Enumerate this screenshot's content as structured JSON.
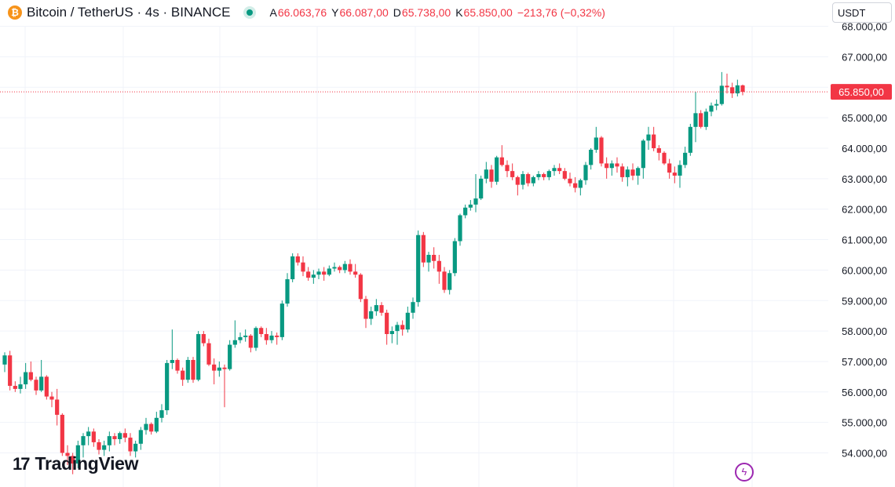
{
  "header": {
    "symbol": "Bitcoin / TetherUS · 4s · BINANCE",
    "open_label": "A",
    "open": "66.063,76",
    "high_label": "Y",
    "high": "66.087,00",
    "low_label": "D",
    "low": "65.738,00",
    "close_label": "K",
    "close": "65.850,00",
    "change": "−213,76 (−0,32%)"
  },
  "currency": "USDT",
  "logo": {
    "mark": "17",
    "text": "TradingView"
  },
  "icons": {
    "coin": "bitcoin-icon",
    "flash": "lightning-icon"
  },
  "colors": {
    "up": "#089981",
    "down": "#f23645",
    "grid": "#f0f3fa",
    "axis_text": "#131722"
  },
  "chart_data": {
    "type": "candlestick",
    "ylim": [
      53500,
      68300
    ],
    "y_ticks": [
      "68.000,00",
      "67.000,00",
      "66.000,00",
      "65.000,00",
      "64.000,00",
      "63.000,00",
      "62.000,00",
      "61.000,00",
      "60.000,00",
      "59.000,00",
      "58.000,00",
      "57.000,00",
      "56.000,00",
      "55.000,00",
      "54.000,00"
    ],
    "last_price": 65850,
    "last_price_label": "65.850,00",
    "candles": [
      [
        56900,
        57300,
        56650,
        57200
      ],
      [
        57200,
        57350,
        56050,
        56200
      ],
      [
        56200,
        56350,
        56000,
        56100
      ],
      [
        56100,
        56500,
        55950,
        56250
      ],
      [
        56250,
        56950,
        56100,
        56650
      ],
      [
        56650,
        57000,
        56350,
        56400
      ],
      [
        56400,
        56500,
        55900,
        56050
      ],
      [
        56050,
        57050,
        56000,
        56500
      ],
      [
        56500,
        56550,
        55750,
        55850
      ],
      [
        55850,
        56000,
        55500,
        55750
      ],
      [
        55750,
        56100,
        54900,
        55250
      ],
      [
        55250,
        55300,
        53900,
        54000
      ],
      [
        54000,
        54250,
        53600,
        53900
      ],
      [
        53900,
        54000,
        53300,
        53650
      ],
      [
        53650,
        54400,
        53500,
        54250
      ],
      [
        54250,
        54650,
        53850,
        54550
      ],
      [
        54550,
        54850,
        54250,
        54700
      ],
      [
        54700,
        54800,
        54200,
        54350
      ],
      [
        54350,
        54450,
        53950,
        54100
      ],
      [
        54100,
        54400,
        53900,
        54250
      ],
      [
        54250,
        54700,
        54050,
        54550
      ],
      [
        54550,
        54650,
        54250,
        54450
      ],
      [
        54450,
        54700,
        54300,
        54650
      ],
      [
        54650,
        54800,
        54350,
        54500
      ],
      [
        54500,
        54650,
        53900,
        54050
      ],
      [
        54050,
        54400,
        53850,
        54300
      ],
      [
        54300,
        54850,
        54100,
        54750
      ],
      [
        54750,
        55150,
        54600,
        54950
      ],
      [
        54950,
        55000,
        54600,
        54700
      ],
      [
        54700,
        55350,
        54650,
        55150
      ],
      [
        55150,
        55600,
        55000,
        55400
      ],
      [
        55400,
        57050,
        55250,
        56950
      ],
      [
        56950,
        58050,
        56750,
        57050
      ],
      [
        57050,
        57100,
        56600,
        56700
      ],
      [
        56700,
        56800,
        56200,
        56400
      ],
      [
        56400,
        57150,
        56300,
        57050
      ],
      [
        57050,
        57150,
        56300,
        56400
      ],
      [
        56400,
        58000,
        56350,
        57900
      ],
      [
        57900,
        58000,
        57500,
        57600
      ],
      [
        57600,
        57750,
        56850,
        56900
      ],
      [
        56900,
        57100,
        56250,
        56700
      ],
      [
        56700,
        57000,
        56500,
        56800
      ],
      [
        56800,
        56900,
        55500,
        56750
      ],
      [
        56750,
        57700,
        56700,
        57550
      ],
      [
        57550,
        58350,
        57450,
        57700
      ],
      [
        57700,
        57950,
        57600,
        57800
      ],
      [
        57800,
        58050,
        57650,
        57850
      ],
      [
        57850,
        57900,
        57300,
        57450
      ],
      [
        57450,
        58150,
        57350,
        58100
      ],
      [
        58100,
        58150,
        57800,
        57900
      ],
      [
        57900,
        58100,
        57550,
        57700
      ],
      [
        57700,
        58000,
        57600,
        57850
      ],
      [
        57850,
        57950,
        57550,
        57800
      ],
      [
        57800,
        59000,
        57700,
        58900
      ],
      [
        58900,
        59900,
        58800,
        59700
      ],
      [
        59700,
        60550,
        59600,
        60450
      ],
      [
        60450,
        60550,
        60150,
        60250
      ],
      [
        60250,
        60450,
        59800,
        59950
      ],
      [
        59950,
        60100,
        59650,
        59750
      ],
      [
        59750,
        60000,
        59550,
        59850
      ],
      [
        59850,
        60050,
        59700,
        59950
      ],
      [
        59950,
        60100,
        59650,
        59850
      ],
      [
        59850,
        60150,
        59800,
        60050
      ],
      [
        60050,
        60250,
        59950,
        60100
      ],
      [
        60100,
        60150,
        59900,
        60000
      ],
      [
        60000,
        60300,
        59900,
        60200
      ],
      [
        60200,
        60350,
        59850,
        59950
      ],
      [
        59950,
        60200,
        59750,
        59850
      ],
      [
        59850,
        59900,
        58950,
        59050
      ],
      [
        59050,
        59150,
        58100,
        58400
      ],
      [
        58400,
        58800,
        58200,
        58650
      ],
      [
        58650,
        59050,
        58500,
        58850
      ],
      [
        58850,
        58950,
        58500,
        58600
      ],
      [
        58600,
        58700,
        57550,
        57900
      ],
      [
        57900,
        58150,
        57600,
        58000
      ],
      [
        58000,
        58300,
        57550,
        58200
      ],
      [
        58200,
        58350,
        57850,
        58050
      ],
      [
        58050,
        58800,
        57950,
        58600
      ],
      [
        58600,
        59100,
        58400,
        58950
      ],
      [
        58950,
        61300,
        58800,
        61150
      ],
      [
        61150,
        61250,
        60100,
        60250
      ],
      [
        60250,
        60600,
        59950,
        60500
      ],
      [
        60500,
        60750,
        60050,
        60300
      ],
      [
        60300,
        60500,
        59550,
        59950
      ],
      [
        59950,
        60100,
        59250,
        59350
      ],
      [
        59350,
        60000,
        59200,
        59900
      ],
      [
        59900,
        61050,
        59800,
        60950
      ],
      [
        60950,
        61850,
        60800,
        61800
      ],
      [
        61800,
        62150,
        61700,
        62050
      ],
      [
        62050,
        62300,
        61950,
        62150
      ],
      [
        62150,
        63150,
        61900,
        62350
      ],
      [
        62350,
        63100,
        62300,
        63000
      ],
      [
        63000,
        63550,
        62850,
        63300
      ],
      [
        63300,
        63450,
        62700,
        62900
      ],
      [
        62900,
        63750,
        62800,
        63700
      ],
      [
        63700,
        64100,
        63400,
        63450
      ],
      [
        63450,
        63600,
        63050,
        63250
      ],
      [
        63250,
        63500,
        62950,
        63050
      ],
      [
        63050,
        63100,
        62450,
        62800
      ],
      [
        62800,
        63250,
        62650,
        63150
      ],
      [
        63150,
        63200,
        62750,
        62850
      ],
      [
        62850,
        63100,
        62750,
        63050
      ],
      [
        63050,
        63250,
        62950,
        63150
      ],
      [
        63150,
        63200,
        62950,
        63050
      ],
      [
        63050,
        63300,
        62950,
        63250
      ],
      [
        63250,
        63450,
        63100,
        63350
      ],
      [
        63350,
        63500,
        63150,
        63250
      ],
      [
        63250,
        63350,
        62950,
        63000
      ],
      [
        63000,
        63200,
        62750,
        62850
      ],
      [
        62850,
        63050,
        62550,
        62700
      ],
      [
        62700,
        63000,
        62450,
        62950
      ],
      [
        62950,
        63550,
        62800,
        63450
      ],
      [
        63450,
        64000,
        63300,
        63950
      ],
      [
        63950,
        64700,
        63850,
        64350
      ],
      [
        64350,
        64400,
        63400,
        63500
      ],
      [
        63500,
        63700,
        63000,
        63350
      ],
      [
        63350,
        63600,
        63100,
        63500
      ],
      [
        63500,
        63700,
        63200,
        63400
      ],
      [
        63400,
        63500,
        62900,
        63050
      ],
      [
        63050,
        63400,
        62750,
        63300
      ],
      [
        63300,
        63500,
        62950,
        63100
      ],
      [
        63100,
        63400,
        62800,
        63350
      ],
      [
        63350,
        64300,
        63000,
        64250
      ],
      [
        64250,
        64700,
        63950,
        64450
      ],
      [
        64450,
        64700,
        63900,
        64000
      ],
      [
        64000,
        64100,
        63600,
        63850
      ],
      [
        63850,
        63900,
        63450,
        63500
      ],
      [
        63500,
        63650,
        63000,
        63200
      ],
      [
        63200,
        63400,
        62850,
        63100
      ],
      [
        63100,
        63600,
        62700,
        63450
      ],
      [
        63450,
        64050,
        63350,
        63850
      ],
      [
        63850,
        64800,
        63750,
        64700
      ],
      [
        64700,
        65850,
        64200,
        65150
      ],
      [
        65150,
        65250,
        64650,
        64700
      ],
      [
        64700,
        65300,
        64600,
        65200
      ],
      [
        65200,
        65500,
        65050,
        65400
      ],
      [
        65400,
        65600,
        65250,
        65450
      ],
      [
        65450,
        66500,
        65400,
        66050
      ],
      [
        66050,
        66450,
        65800,
        66000
      ],
      [
        66000,
        66150,
        65650,
        65800
      ],
      [
        65800,
        66250,
        65700,
        66063.76
      ],
      [
        66063.76,
        66087,
        65738,
        65850
      ]
    ]
  }
}
